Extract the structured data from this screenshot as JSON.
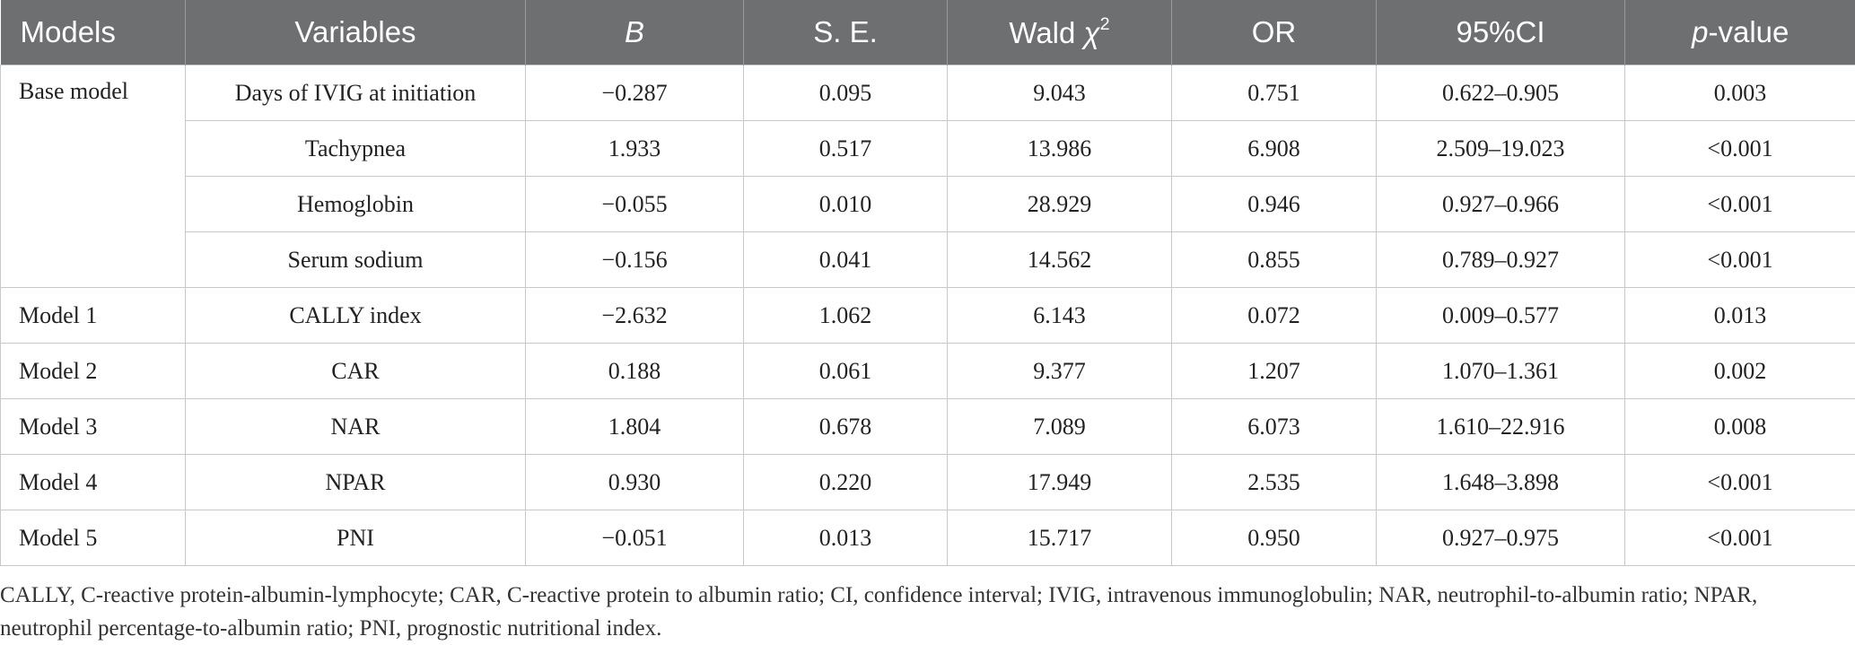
{
  "table": {
    "columns": [
      [
        {
          "text": "Models"
        }
      ],
      [
        {
          "text": "Variables"
        }
      ],
      [
        {
          "text": "B",
          "italic": true
        }
      ],
      [
        {
          "text": "S. E."
        }
      ],
      [
        {
          "text": "Wald "
        },
        {
          "text": "χ",
          "italic": true
        },
        {
          "text": "2",
          "sup": true
        }
      ],
      [
        {
          "text": "OR"
        }
      ],
      [
        {
          "text": "95%CI"
        }
      ],
      [
        {
          "text": "p",
          "italic": true
        },
        {
          "text": "-value"
        }
      ]
    ],
    "groups": [
      {
        "model": "Base model",
        "rows": [
          [
            "Days of IVIG at initiation",
            "−0.287",
            "0.095",
            "9.043",
            "0.751",
            "0.622–0.905",
            "0.003"
          ],
          [
            "Tachypnea",
            "1.933",
            "0.517",
            "13.986",
            "6.908",
            "2.509–19.023",
            "<0.001"
          ],
          [
            "Hemoglobin",
            "−0.055",
            "0.010",
            "28.929",
            "0.946",
            "0.927–0.966",
            "<0.001"
          ],
          [
            "Serum sodium",
            "−0.156",
            "0.041",
            "14.562",
            "0.855",
            "0.789–0.927",
            "<0.001"
          ]
        ]
      },
      {
        "model": "Model 1",
        "rows": [
          [
            "CALLY index",
            "−2.632",
            "1.062",
            "6.143",
            "0.072",
            "0.009–0.577",
            "0.013"
          ]
        ]
      },
      {
        "model": "Model 2",
        "rows": [
          [
            "CAR",
            "0.188",
            "0.061",
            "9.377",
            "1.207",
            "1.070–1.361",
            "0.002"
          ]
        ]
      },
      {
        "model": "Model 3",
        "rows": [
          [
            "NAR",
            "1.804",
            "0.678",
            "7.089",
            "6.073",
            "1.610–22.916",
            "0.008"
          ]
        ]
      },
      {
        "model": "Model 4",
        "rows": [
          [
            "NPAR",
            "0.930",
            "0.220",
            "17.949",
            "2.535",
            "1.648–3.898",
            "<0.001"
          ]
        ]
      },
      {
        "model": "Model 5",
        "rows": [
          [
            "PNI",
            "−0.051",
            "0.013",
            "15.717",
            "0.950",
            "0.927–0.975",
            "<0.001"
          ]
        ]
      }
    ],
    "footnote": "CALLY, C-reactive protein-albumin-lymphocyte; CAR, C-reactive protein to albumin ratio; CI, confidence interval; IVIG, intravenous immunoglobulin; NAR, neutrophil-to-albumin ratio; NPAR, neutrophil percentage-to-albumin ratio; PNI, prognostic nutritional index."
  }
}
